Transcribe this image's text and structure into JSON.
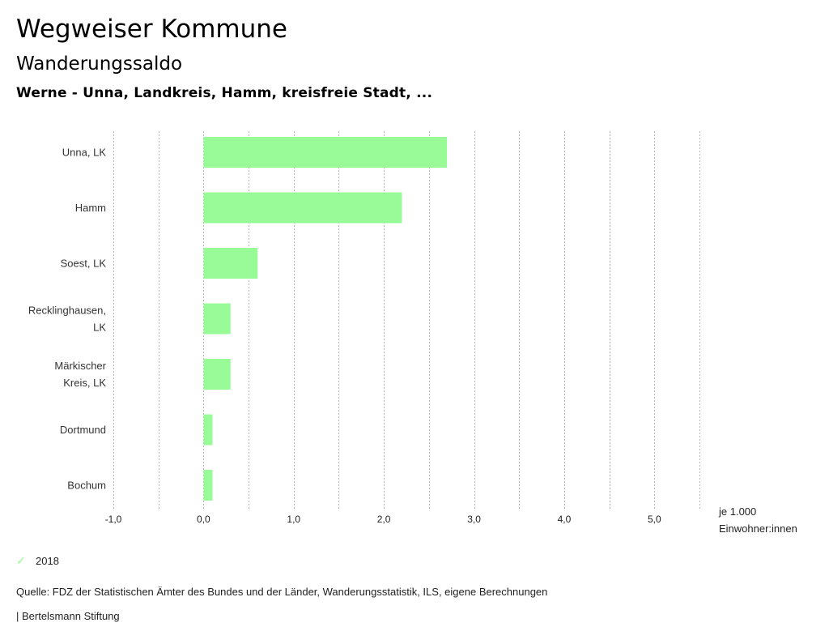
{
  "header": {
    "title": "Wegweiser Kommune",
    "subtitle": "Wanderungssaldo",
    "region": "Werne - Unna, Landkreis, Hamm, kreisfreie Stadt, ..."
  },
  "chart_data": {
    "type": "bar",
    "orientation": "horizontal",
    "categories": [
      [
        "Unna, LK"
      ],
      [
        "Hamm"
      ],
      [
        "Soest, LK"
      ],
      [
        "Recklinghausen,",
        "LK"
      ],
      [
        "Märkischer",
        "Kreis, LK"
      ],
      [
        "Dortmund"
      ],
      [
        "Bochum"
      ]
    ],
    "series": [
      {
        "name": "2018",
        "color": "#98fb98",
        "values": [
          2.7,
          2.2,
          0.6,
          0.3,
          0.3,
          0.1,
          0.1
        ]
      }
    ],
    "xlim": [
      -1.0,
      5.5
    ],
    "xticks": [
      -1.0,
      0.0,
      1.0,
      2.0,
      3.0,
      4.0,
      5.0
    ],
    "xtick_labels": [
      "-1,0",
      "0,0",
      "1,0",
      "2,0",
      "3,0",
      "4,0",
      "5,0"
    ],
    "grid_step": 0.5,
    "grid": true,
    "xlabel": [
      "je 1.000",
      "Einwohner:innen"
    ],
    "legend_position": "bottom-left"
  },
  "legend": {
    "items": [
      {
        "label": "2018",
        "icon": "check-icon",
        "color": "#98fb98"
      }
    ]
  },
  "footer": {
    "source": "Quelle: FDZ der Statistischen Ämter des Bundes und der Länder, Wanderungsstatistik, ILS, eigene Berechnungen",
    "credit": "| Bertelsmann Stiftung"
  }
}
